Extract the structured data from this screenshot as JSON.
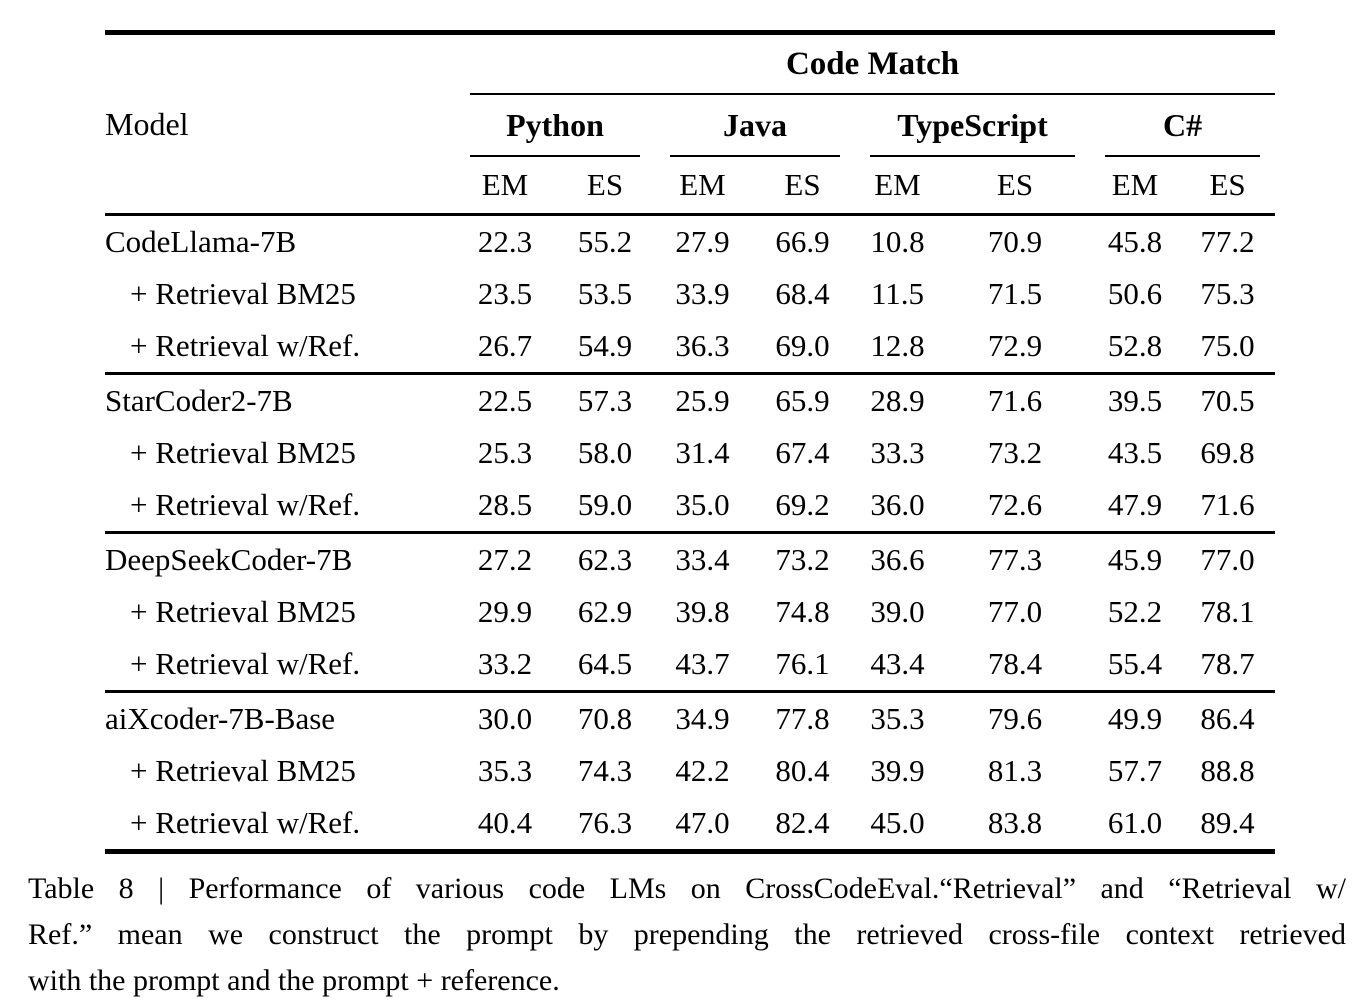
{
  "table": {
    "model_header": "Model",
    "span_header": "Code Match",
    "groups": [
      {
        "label": "Python",
        "sub": [
          "EM",
          "ES"
        ]
      },
      {
        "label": "Java",
        "sub": [
          "EM",
          "ES"
        ]
      },
      {
        "label": "TypeScript",
        "sub": [
          "EM",
          "ES"
        ]
      },
      {
        "label": "C#",
        "sub": [
          "EM",
          "ES"
        ]
      }
    ],
    "rows": [
      {
        "model": "CodeLlama-7B",
        "indent": false,
        "values": [
          "22.3",
          "55.2",
          "27.9",
          "66.9",
          "10.8",
          "70.9",
          "45.8",
          "77.2"
        ]
      },
      {
        "model": "+ Retrieval BM25",
        "indent": true,
        "values": [
          "23.5",
          "53.5",
          "33.9",
          "68.4",
          "11.5",
          "71.5",
          "50.6",
          "75.3"
        ]
      },
      {
        "model": "+ Retrieval w/Ref.",
        "indent": true,
        "values": [
          "26.7",
          "54.9",
          "36.3",
          "69.0",
          "12.8",
          "72.9",
          "52.8",
          "75.0"
        ]
      },
      {
        "model": "StarCoder2-7B",
        "indent": false,
        "values": [
          "22.5",
          "57.3",
          "25.9",
          "65.9",
          "28.9",
          "71.6",
          "39.5",
          "70.5"
        ]
      },
      {
        "model": "+ Retrieval BM25",
        "indent": true,
        "values": [
          "25.3",
          "58.0",
          "31.4",
          "67.4",
          "33.3",
          "73.2",
          "43.5",
          "69.8"
        ]
      },
      {
        "model": "+ Retrieval w/Ref.",
        "indent": true,
        "values": [
          "28.5",
          "59.0",
          "35.0",
          "69.2",
          "36.0",
          "72.6",
          "47.9",
          "71.6"
        ]
      },
      {
        "model": "DeepSeekCoder-7B",
        "indent": false,
        "values": [
          "27.2",
          "62.3",
          "33.4",
          "73.2",
          "36.6",
          "77.3",
          "45.9",
          "77.0"
        ]
      },
      {
        "model": "+ Retrieval BM25",
        "indent": true,
        "values": [
          "29.9",
          "62.9",
          "39.8",
          "74.8",
          "39.0",
          "77.0",
          "52.2",
          "78.1"
        ]
      },
      {
        "model": "+ Retrieval w/Ref.",
        "indent": true,
        "values": [
          "33.2",
          "64.5",
          "43.7",
          "76.1",
          "43.4",
          "78.4",
          "55.4",
          "78.7"
        ]
      },
      {
        "model": "aiXcoder-7B-Base",
        "indent": false,
        "values": [
          "30.0",
          "70.8",
          "34.9",
          "77.8",
          "35.3",
          "79.6",
          "49.9",
          "86.4"
        ]
      },
      {
        "model": "+ Retrieval BM25",
        "indent": true,
        "values": [
          "35.3",
          "74.3",
          "42.2",
          "80.4",
          "39.9",
          "81.3",
          "57.7",
          "88.8"
        ]
      },
      {
        "model": "+ Retrieval w/Ref.",
        "indent": true,
        "values": [
          "40.4",
          "76.3",
          "47.0",
          "82.4",
          "45.0",
          "83.8",
          "61.0",
          "89.4"
        ]
      }
    ]
  },
  "caption": {
    "lines": [
      "Table 8 | Performance of various code LMs on CrossCodeEval.“Retrieval” and “Retrieval w/",
      "Ref.” mean we construct the prompt by prepending the retrieved cross-file context retrieved",
      "with the prompt and the prompt + reference."
    ]
  },
  "colors": {
    "text": "#000000",
    "background": "#ffffff",
    "rule": "#000000"
  }
}
